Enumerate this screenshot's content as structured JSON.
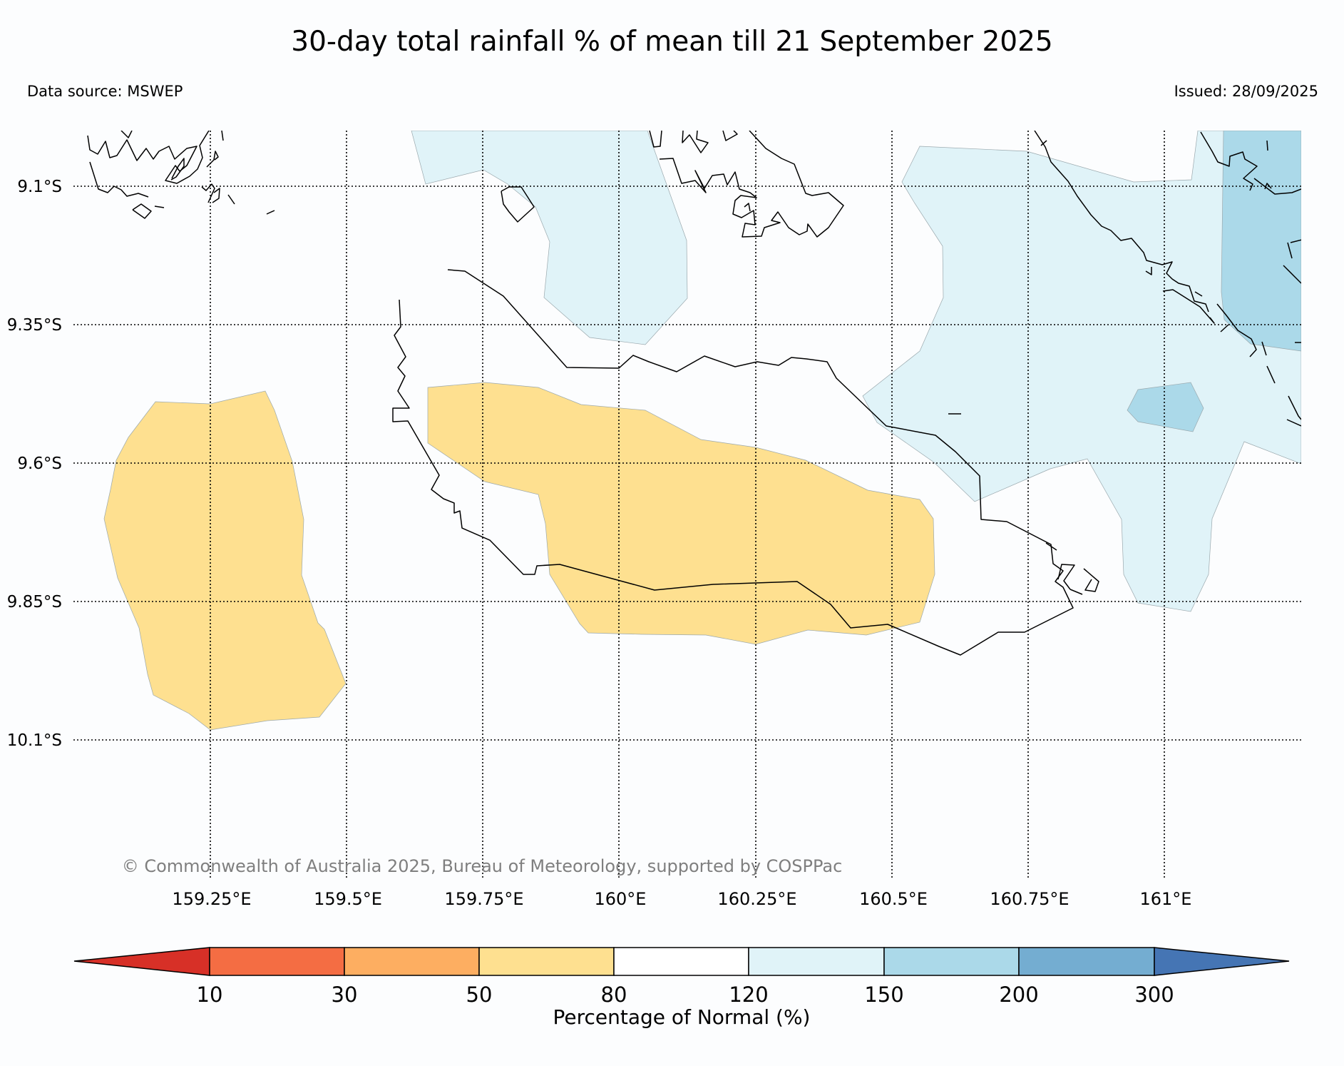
{
  "title": "30-day total rainfall % of mean till 21 September 2025",
  "data_source": "Data source: MSWEP",
  "issued": "Issued: 28/09/2025",
  "copyright": "© Commonwealth of Australia 2025, Bureau of Meteorology, supported by COSPPac",
  "map": {
    "longitude_labels": [
      "159.25°E",
      "159.5°E",
      "159.75°E",
      "160°E",
      "160.25°E",
      "160.5°E",
      "160.75°E",
      "161°E"
    ],
    "latitude_labels": [
      "9.1°S",
      "9.35°S",
      "9.6°S",
      "9.85°S",
      "10.1°S"
    ],
    "region_colors": {
      "below_normal_50_80": "#fee090",
      "above_normal_120_150": "#e0f3f8",
      "above_normal_150_200": "#abd9e9"
    }
  },
  "colorbar": {
    "label": "Percentage of Normal (%)",
    "ticks": [
      "10",
      "30",
      "50",
      "80",
      "120",
      "150",
      "200",
      "300"
    ],
    "colors": [
      "#d73027",
      "#f46d43",
      "#fdae61",
      "#fee090",
      "#ffffff",
      "#e0f3f8",
      "#abd9e9",
      "#74add1",
      "#4575b4"
    ]
  }
}
